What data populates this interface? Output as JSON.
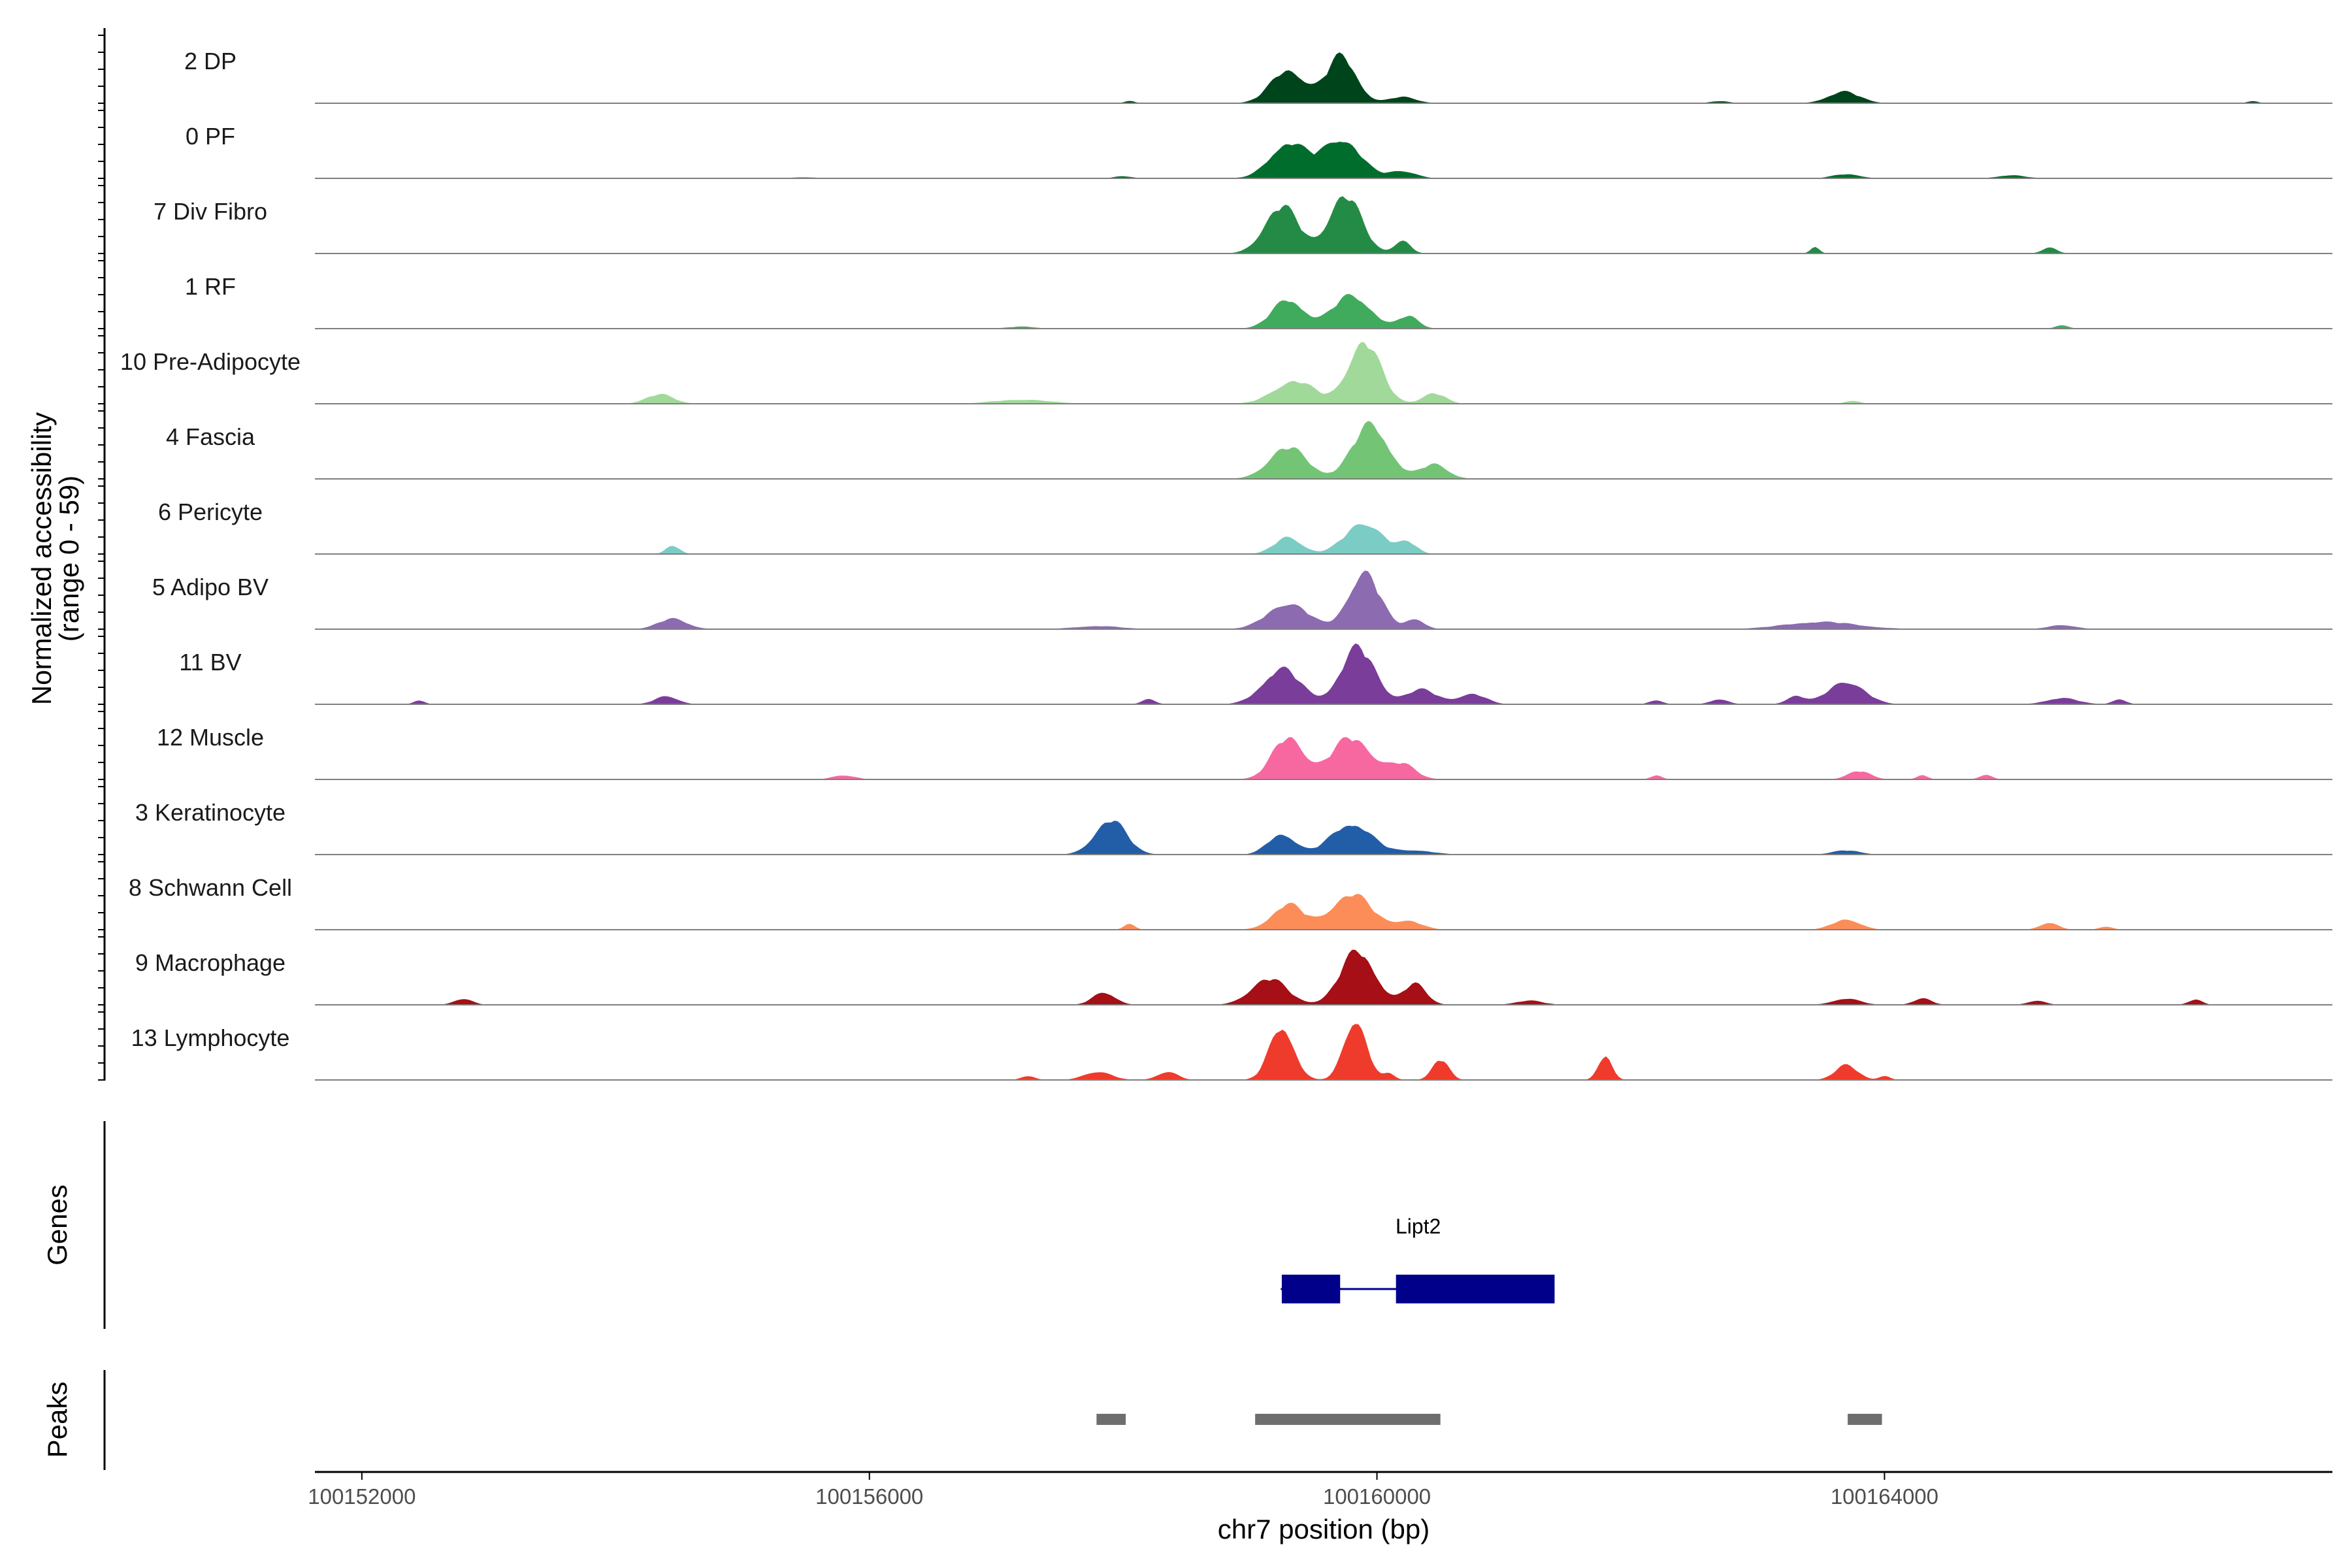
{
  "chart_data": {
    "type": "area",
    "title": "",
    "panels": [
      "Normalized accessibility",
      "Genes",
      "Peaks"
    ],
    "ylabel": "Normalized accessibility\n(range 0 - 59)",
    "ylabel_lines": [
      "Normalized accessibility",
      "(range 0 - 59)"
    ],
    "ylim": [
      0,
      59
    ],
    "xlabel": "chr7 position (bp)",
    "xlim": [
      100151630,
      100167530
    ],
    "xticks": [
      100152000,
      100156000,
      100160000,
      100164000
    ],
    "xtick_labels": [
      "100152000",
      "100156000",
      "100160000",
      "100164000"
    ],
    "genes_label": "Genes",
    "peaks_label": "Peaks",
    "series": [
      {
        "name": "2 DP",
        "color": "#00441b",
        "peaks": [
          [
            100159300,
            32,
            380
          ],
          [
            100159720,
            45,
            330
          ],
          [
            100160200,
            6,
            300
          ],
          [
            100163680,
            11,
            350
          ],
          [
            100158050,
            2,
            120
          ],
          [
            100162700,
            2,
            200
          ],
          [
            100166900,
            2,
            120
          ]
        ]
      },
      {
        "name": "0 PF",
        "color": "#006d2c",
        "peaks": [
          [
            100159300,
            34,
            400
          ],
          [
            100159720,
            38,
            420
          ],
          [
            100160200,
            7,
            300
          ],
          [
            100163700,
            4,
            300
          ],
          [
            100165000,
            3,
            300
          ],
          [
            100158000,
            2,
            200
          ],
          [
            100155500,
            1,
            300
          ]
        ]
      },
      {
        "name": "7 Div Fibro",
        "color": "#238b45",
        "peaks": [
          [
            100159250,
            45,
            380
          ],
          [
            100159750,
            55,
            360
          ],
          [
            100160200,
            12,
            180
          ],
          [
            100163450,
            6,
            100
          ],
          [
            100165300,
            6,
            160
          ]
        ]
      },
      {
        "name": "1 RF",
        "color": "#41ab5d",
        "peaks": [
          [
            100159300,
            28,
            350
          ],
          [
            100159800,
            32,
            420
          ],
          [
            100160250,
            12,
            220
          ],
          [
            100165400,
            3,
            150
          ],
          [
            100157200,
            2,
            300
          ]
        ]
      },
      {
        "name": "10 Pre-Adipocyte",
        "color": "#a1d99b",
        "peaks": [
          [
            100159350,
            22,
            450
          ],
          [
            100159900,
            59,
            360
          ],
          [
            100160450,
            10,
            250
          ],
          [
            100154350,
            9,
            300
          ],
          [
            100157200,
            4,
            600
          ],
          [
            100163750,
            3,
            150
          ]
        ]
      },
      {
        "name": "4 Fascia",
        "color": "#74c476",
        "peaks": [
          [
            100159300,
            30,
            420
          ],
          [
            100159950,
            52,
            400
          ],
          [
            100160450,
            14,
            300
          ]
        ]
      },
      {
        "name": "6 Pericyte",
        "color": "#7bccc4",
        "peaks": [
          [
            100159300,
            16,
            300
          ],
          [
            100159900,
            30,
            420
          ],
          [
            100160250,
            10,
            200
          ],
          [
            100154450,
            8,
            150
          ]
        ]
      },
      {
        "name": "5 Adipo BV",
        "color": "#8c6bb1",
        "peaks": [
          [
            100159300,
            25,
            450
          ],
          [
            100159900,
            54,
            350
          ],
          [
            100160300,
            10,
            200
          ],
          [
            100154450,
            10,
            320
          ],
          [
            100157800,
            3,
            500
          ],
          [
            100163500,
            7,
            800
          ],
          [
            100165400,
            4,
            300
          ]
        ]
      },
      {
        "name": "11 BV",
        "color": "#7a3d9a",
        "peaks": [
          [
            100159250,
            34,
            420
          ],
          [
            100159850,
            54,
            380
          ],
          [
            100160350,
            14,
            350
          ],
          [
            100160750,
            10,
            300
          ],
          [
            100154400,
            8,
            250
          ],
          [
            100152450,
            4,
            120
          ],
          [
            100158200,
            5,
            150
          ],
          [
            100162200,
            4,
            150
          ],
          [
            100162700,
            5,
            200
          ],
          [
            100163700,
            22,
            400
          ],
          [
            100163300,
            8,
            200
          ],
          [
            100165400,
            6,
            350
          ],
          [
            100165850,
            5,
            150
          ]
        ]
      },
      {
        "name": "12 Muscle",
        "color": "#f768a1",
        "peaks": [
          [
            100159300,
            40,
            350
          ],
          [
            100159800,
            40,
            450
          ],
          [
            100160200,
            14,
            300
          ],
          [
            100155800,
            4,
            250
          ],
          [
            100162200,
            4,
            120
          ],
          [
            100163800,
            8,
            250
          ],
          [
            100164300,
            4,
            120
          ],
          [
            100164800,
            4,
            150
          ]
        ]
      },
      {
        "name": "3 Keratinocyte",
        "color": "#225ea8",
        "peaks": [
          [
            100157900,
            33,
            350
          ],
          [
            100159250,
            20,
            300
          ],
          [
            100159800,
            30,
            450
          ],
          [
            100160300,
            4,
            400
          ],
          [
            100163700,
            4,
            300
          ]
        ]
      },
      {
        "name": "8 Schwann Cell",
        "color": "#fc8d59",
        "peaks": [
          [
            100159300,
            24,
            350
          ],
          [
            100159800,
            34,
            450
          ],
          [
            100160250,
            8,
            300
          ],
          [
            100158050,
            6,
            120
          ],
          [
            100163700,
            10,
            300
          ],
          [
            100165300,
            7,
            200
          ],
          [
            100165750,
            3,
            150
          ]
        ]
      },
      {
        "name": "9 Macrophage",
        "color": "#a50f15",
        "peaks": [
          [
            100159150,
            25,
            400
          ],
          [
            100159850,
            52,
            380
          ],
          [
            100160300,
            20,
            250
          ],
          [
            100157850,
            12,
            250
          ],
          [
            100152800,
            6,
            200
          ],
          [
            100163700,
            6,
            300
          ],
          [
            100164300,
            6,
            200
          ],
          [
            100165200,
            4,
            200
          ],
          [
            100166450,
            5,
            150
          ],
          [
            100161200,
            4,
            300
          ]
        ]
      },
      {
        "name": "13 Lymphocyte",
        "color": "#ef3b2c",
        "peaks": [
          [
            100159250,
            52,
            270
          ],
          [
            100159830,
            59,
            250
          ],
          [
            100160500,
            20,
            180
          ],
          [
            100161800,
            24,
            150
          ],
          [
            100157800,
            8,
            300
          ],
          [
            100158350,
            8,
            220
          ],
          [
            100163700,
            14,
            250
          ],
          [
            100164000,
            4,
            120
          ],
          [
            100157250,
            4,
            150
          ],
          [
            100160100,
            6,
            120
          ]
        ]
      }
    ],
    "genes": [
      {
        "name": "Lipt2",
        "start": 100159250,
        "end": 100161400,
        "strand": "-",
        "exons": [
          [
            100159250,
            100159710
          ],
          [
            100160150,
            100161400
          ]
        ]
      }
    ],
    "peak_regions": [
      [
        100157790,
        100158020
      ],
      [
        100159040,
        100160500
      ],
      [
        100163710,
        100163980
      ]
    ]
  }
}
